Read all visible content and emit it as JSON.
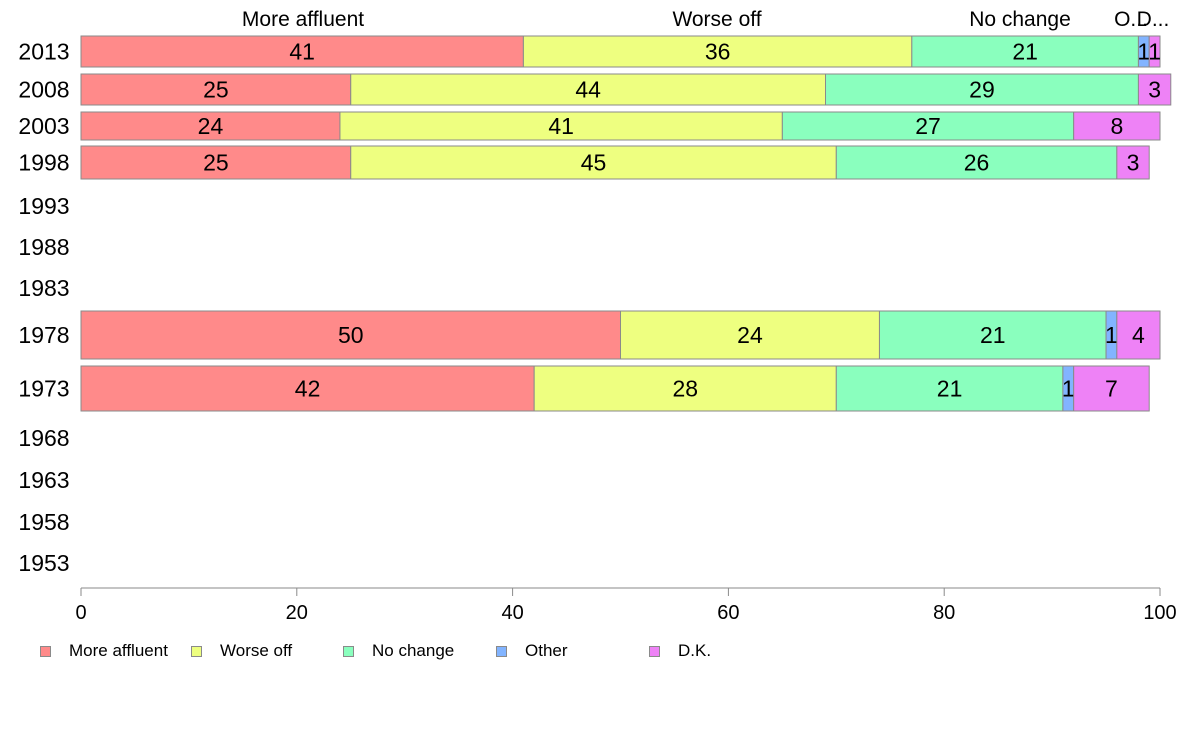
{
  "chart_data": {
    "type": "bar",
    "orientation": "horizontal",
    "stacked": true,
    "categories": [
      "2013",
      "2008",
      "2003",
      "1998",
      "1993",
      "1988",
      "1983",
      "1978",
      "1973",
      "1968",
      "1963",
      "1958",
      "1953"
    ],
    "series": [
      {
        "name": "More affluent",
        "color": "#ff8a8a",
        "values": [
          41,
          25,
          24,
          25,
          null,
          null,
          null,
          50,
          42,
          null,
          null,
          null,
          null
        ]
      },
      {
        "name": "Worse off",
        "color": "#eeff80",
        "values": [
          36,
          44,
          41,
          45,
          null,
          null,
          null,
          24,
          28,
          null,
          null,
          null,
          null
        ]
      },
      {
        "name": "No change",
        "color": "#8affbe",
        "values": [
          21,
          29,
          27,
          26,
          null,
          null,
          null,
          21,
          21,
          null,
          null,
          null,
          null
        ]
      },
      {
        "name": "Other",
        "color": "#82b4ff",
        "values": [
          1,
          null,
          null,
          null,
          null,
          null,
          null,
          1,
          1,
          null,
          null,
          null,
          null
        ]
      },
      {
        "name": "D.K.",
        "color": "#ee82f6",
        "values": [
          1,
          3,
          8,
          3,
          null,
          null,
          null,
          4,
          7,
          null,
          null,
          null,
          null
        ]
      }
    ],
    "top_labels": [
      "More affluent",
      "Worse off",
      "No change",
      "O...",
      "D..."
    ],
    "xlim": [
      0,
      100
    ],
    "xticks": [
      0,
      20,
      40,
      60,
      80,
      100
    ],
    "grid": false,
    "legend_position": "bottom-left"
  }
}
